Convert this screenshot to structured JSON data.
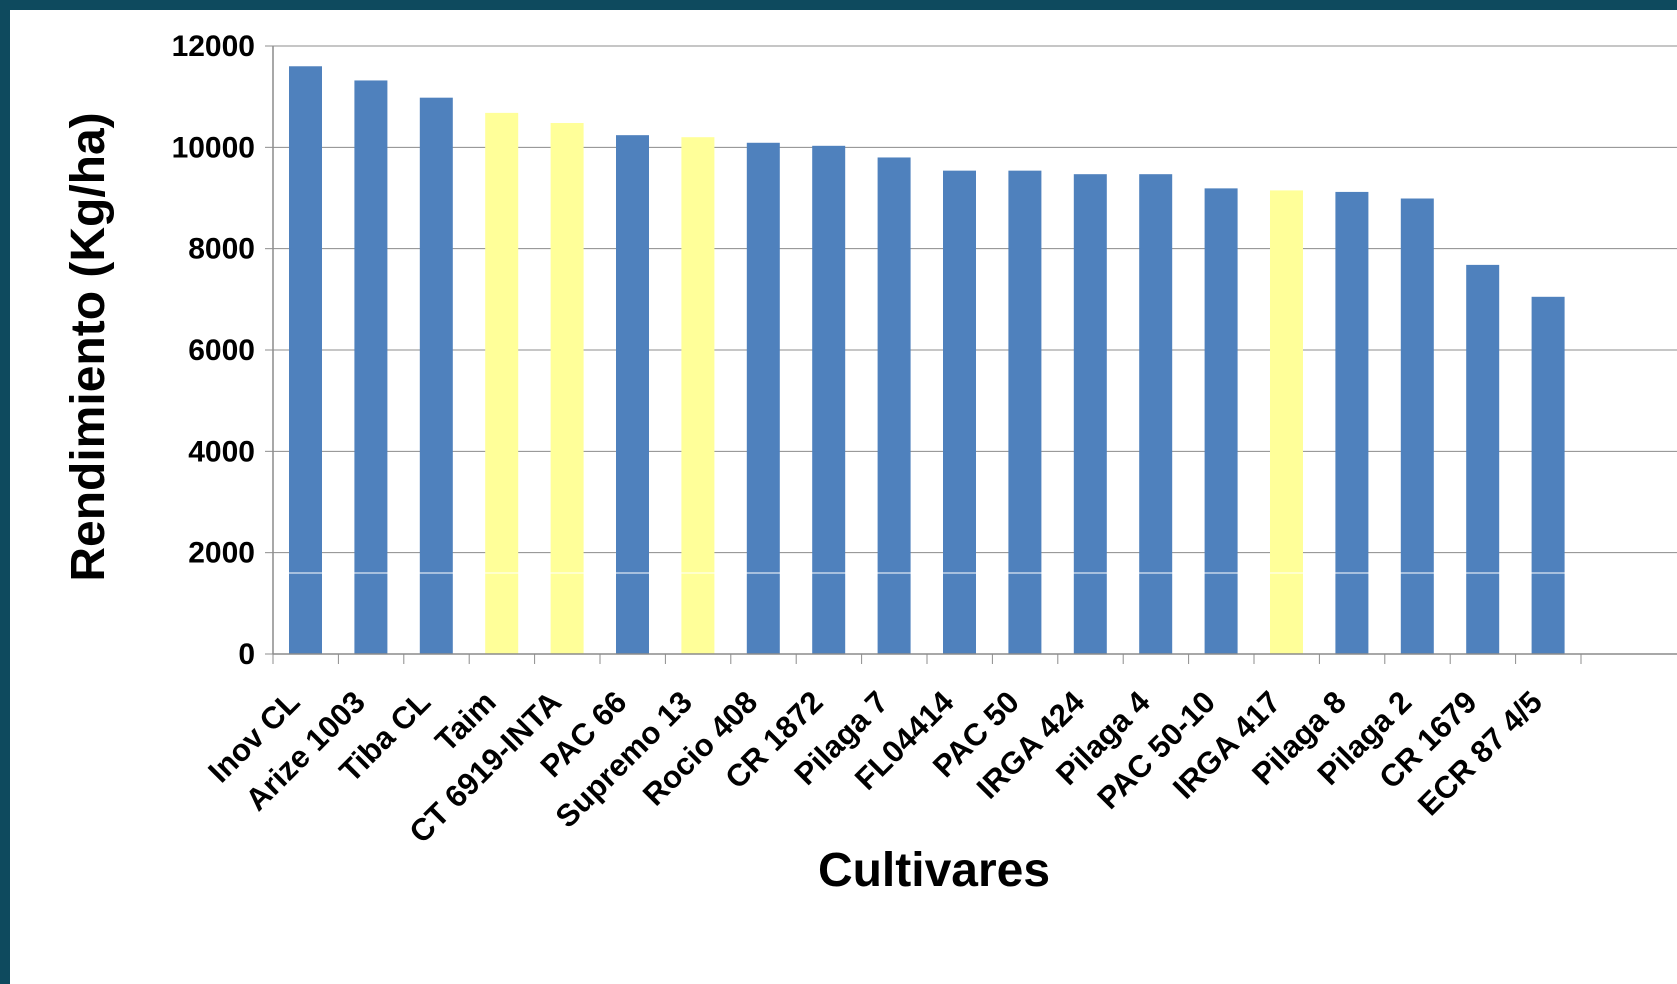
{
  "chart_data": {
    "type": "bar",
    "title": "",
    "xlabel": "Cultivares",
    "ylabel": "Rendimiento (Kg/ha)",
    "ylim": [
      0,
      12000
    ],
    "yticks": [
      0,
      2000,
      4000,
      6000,
      8000,
      10000,
      12000
    ],
    "grid": true,
    "legend": "none",
    "colors": {
      "default": "#4f81bd",
      "highlight": "#ffff99"
    },
    "categories": [
      "Inov CL",
      "Arize 1003",
      "Tiba CL",
      "Taim",
      "CT 6919-INTA",
      "PAC 66",
      "Supremo 13",
      "Rocio 408",
      "CR 1872",
      "Pilaga 7",
      "FL04414",
      "PAC 50",
      "IRGA 424",
      "Pilaga 4",
      "PAC 50-10",
      "IRGA 417",
      "Pilaga 8",
      "Pilaga 2",
      "CR 1679",
      "ECR 87 4/5"
    ],
    "values": [
      11600,
      11320,
      10980,
      10680,
      10480,
      10240,
      10200,
      10090,
      10030,
      9800,
      9540,
      9540,
      9470,
      9470,
      9190,
      9150,
      9120,
      8990,
      7680,
      7050
    ],
    "highlighted": [
      false,
      false,
      false,
      true,
      true,
      false,
      true,
      false,
      false,
      false,
      false,
      false,
      false,
      false,
      false,
      true,
      false,
      false,
      false,
      false
    ]
  }
}
